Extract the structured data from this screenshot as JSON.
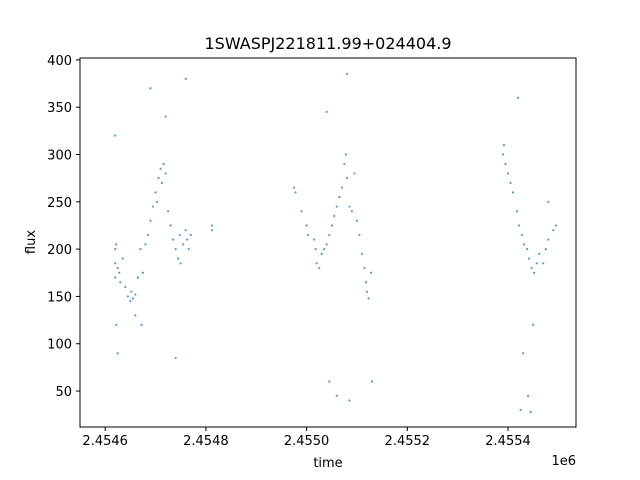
{
  "chart_data": {
    "type": "scatter",
    "title": "1SWASPJ221811.99+024404.9",
    "xlabel": "time",
    "ylabel": "flux",
    "x_offset_label": "1e6",
    "xlim": [
      2.45455,
      2.455535
    ],
    "ylim": [
      12,
      402
    ],
    "x_ticks": [
      2.4546,
      2.4548,
      2.455,
      2.4552,
      2.4554
    ],
    "x_tick_labels": [
      "2.4546",
      "2.4548",
      "2.4550",
      "2.4552",
      "2.4554"
    ],
    "y_ticks": [
      50,
      100,
      150,
      200,
      250,
      300,
      350,
      400
    ],
    "y_tick_labels": [
      "50",
      "100",
      "150",
      "200",
      "250",
      "300",
      "350",
      "400"
    ],
    "grid": false,
    "color": "#1f77b4",
    "series": [
      {
        "values": [
          [
            2.45462,
            200
          ],
          [
            2.45462,
            185
          ],
          [
            2.45462,
            170
          ],
          [
            2.454622,
            205
          ],
          [
            2.454622,
            120
          ],
          [
            2.454625,
            180
          ],
          [
            2.454628,
            175
          ],
          [
            2.45463,
            165
          ],
          [
            2.454635,
            190
          ],
          [
            2.45464,
            160
          ],
          [
            2.454645,
            150
          ],
          [
            2.45465,
            145
          ],
          [
            2.454652,
            155
          ],
          [
            2.454655,
            148
          ],
          [
            2.45466,
            152
          ],
          [
            2.454665,
            170
          ],
          [
            2.45467,
            200
          ],
          [
            2.454672,
            120
          ],
          [
            2.454675,
            175
          ],
          [
            2.45468,
            205
          ],
          [
            2.454685,
            215
          ],
          [
            2.45469,
            230
          ],
          [
            2.454695,
            245
          ],
          [
            2.4547,
            260
          ],
          [
            2.454703,
            250
          ],
          [
            2.454706,
            275
          ],
          [
            2.45471,
            285
          ],
          [
            2.454713,
            270
          ],
          [
            2.454716,
            290
          ],
          [
            2.45472,
            280
          ],
          [
            2.454725,
            240
          ],
          [
            2.45473,
            225
          ],
          [
            2.454735,
            210
          ],
          [
            2.45474,
            200
          ],
          [
            2.454745,
            190
          ],
          [
            2.454748,
            215
          ],
          [
            2.45475,
            185
          ],
          [
            2.454755,
            205
          ],
          [
            2.45476,
            220
          ],
          [
            2.454763,
            210
          ],
          [
            2.454766,
            200
          ],
          [
            2.45477,
            215
          ],
          [
            2.454812,
            225
          ],
          [
            2.454812,
            220
          ],
          [
            2.454975,
            265
          ],
          [
            2.454978,
            260
          ],
          [
            2.45499,
            240
          ],
          [
            2.455,
            225
          ],
          [
            2.455003,
            215
          ],
          [
            2.455015,
            210
          ],
          [
            2.455018,
            200
          ],
          [
            2.45502,
            185
          ],
          [
            2.455025,
            180
          ],
          [
            2.45503,
            195
          ],
          [
            2.455035,
            200
          ],
          [
            2.45504,
            205
          ],
          [
            2.455045,
            215
          ],
          [
            2.45505,
            225
          ],
          [
            2.455055,
            235
          ],
          [
            2.45506,
            245
          ],
          [
            2.455065,
            255
          ],
          [
            2.45507,
            265
          ],
          [
            2.455075,
            290
          ],
          [
            2.455078,
            300
          ],
          [
            2.45508,
            275
          ],
          [
            2.455085,
            245
          ],
          [
            2.45509,
            240
          ],
          [
            2.455095,
            280
          ],
          [
            2.4551,
            230
          ],
          [
            2.455105,
            215
          ],
          [
            2.45511,
            195
          ],
          [
            2.455115,
            180
          ],
          [
            2.455118,
            165
          ],
          [
            2.45512,
            155
          ],
          [
            2.455123,
            148
          ],
          [
            2.455128,
            175
          ],
          [
            2.45539,
            300
          ],
          [
            2.455392,
            310
          ],
          [
            2.455395,
            290
          ],
          [
            2.4554,
            280
          ],
          [
            2.455405,
            270
          ],
          [
            2.45541,
            260
          ],
          [
            2.455418,
            240
          ],
          [
            2.455422,
            225
          ],
          [
            2.455428,
            215
          ],
          [
            2.455432,
            205
          ],
          [
            2.455438,
            200
          ],
          [
            2.455442,
            190
          ],
          [
            2.455447,
            180
          ],
          [
            2.455452,
            175
          ],
          [
            2.455457,
            185
          ],
          [
            2.455462,
            195
          ],
          [
            2.45547,
            185
          ],
          [
            2.455475,
            200
          ],
          [
            2.45548,
            210
          ],
          [
            2.45549,
            220
          ],
          [
            2.455495,
            225
          ],
          [
            2.45462,
            320
          ],
          [
            2.454625,
            90
          ],
          [
            2.45466,
            130
          ],
          [
            2.45469,
            370
          ],
          [
            2.45472,
            340
          ],
          [
            2.45474,
            85
          ],
          [
            2.45476,
            380
          ],
          [
            2.45504,
            345
          ],
          [
            2.45508,
            385
          ],
          [
            2.455085,
            40
          ],
          [
            2.45506,
            45
          ],
          [
            2.455045,
            60
          ],
          [
            2.45513,
            60
          ],
          [
            2.45542,
            360
          ],
          [
            2.455425,
            30
          ],
          [
            2.45544,
            45
          ],
          [
            2.455445,
            28
          ],
          [
            2.45543,
            90
          ],
          [
            2.45545,
            120
          ],
          [
            2.45548,
            250
          ]
        ]
      }
    ]
  }
}
